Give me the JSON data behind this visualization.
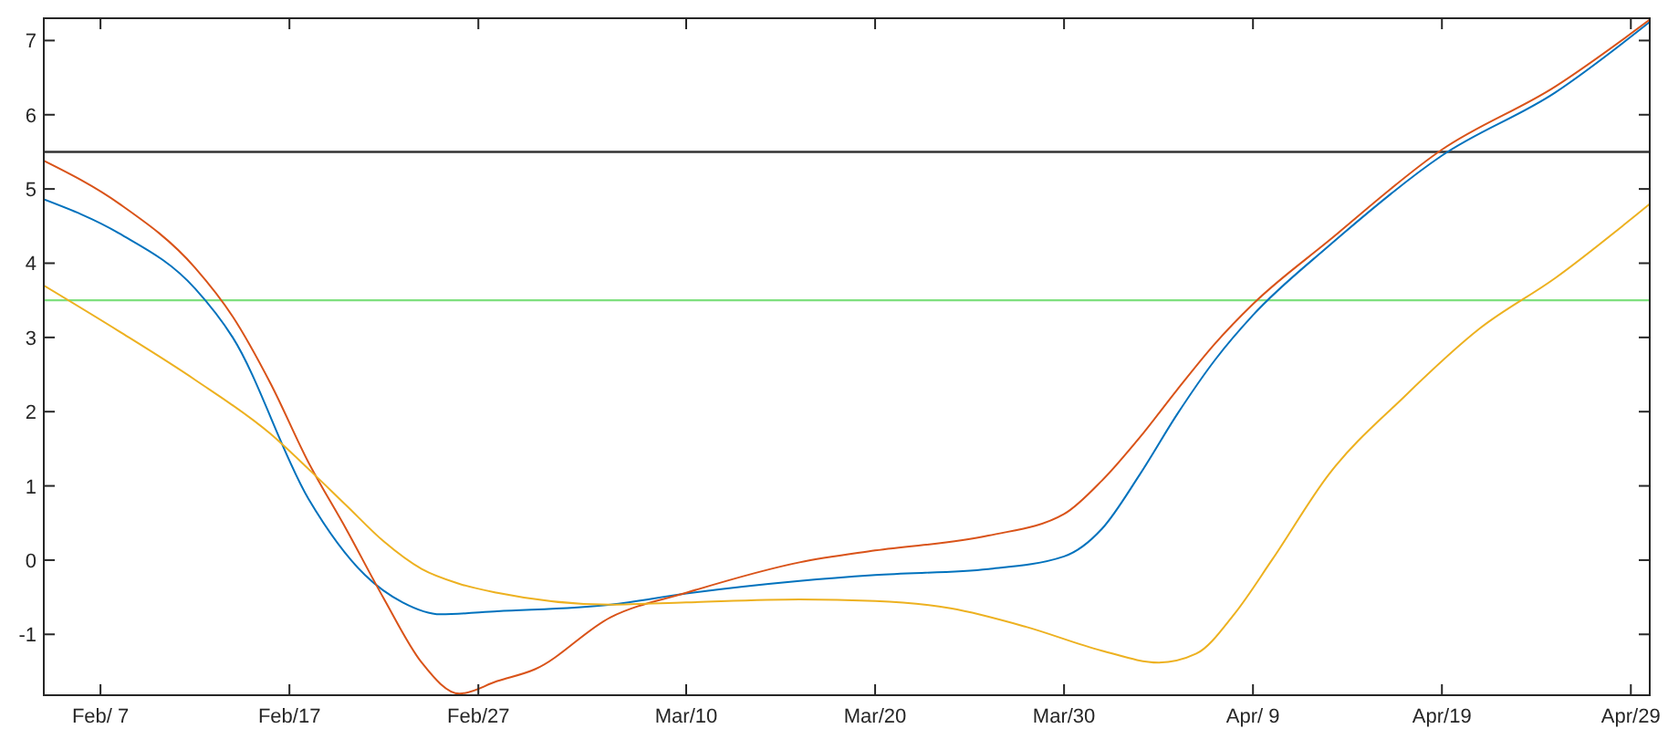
{
  "chart_data": {
    "type": "line",
    "xlim": [
      "--02-04",
      "--04-30"
    ],
    "ylim": [
      -1.82,
      7.3
    ],
    "xticks": [
      {
        "value": "--02-07",
        "label": "Feb/ 7"
      },
      {
        "value": "--02-17",
        "label": "Feb/17"
      },
      {
        "value": "--02-27",
        "label": "Feb/27"
      },
      {
        "value": "--03-10",
        "label": "Mar/10"
      },
      {
        "value": "--03-20",
        "label": "Mar/20"
      },
      {
        "value": "--03-30",
        "label": "Mar/30"
      },
      {
        "value": "--04-09",
        "label": "Apr/ 9"
      },
      {
        "value": "--04-19",
        "label": "Apr/19"
      },
      {
        "value": "--04-29",
        "label": "Apr/29"
      }
    ],
    "yticks": [
      -1,
      0,
      1,
      2,
      3,
      4,
      5,
      6,
      7
    ],
    "grid": false,
    "marker": "none",
    "line_style": "solid",
    "ref_lines": [
      {
        "axis": "y",
        "value": 5.5,
        "color": "#333333"
      },
      {
        "axis": "y",
        "value": 3.5,
        "color": "#7fe07f"
      }
    ],
    "series": [
      {
        "color": "#0072bd",
        "x": [
          "--02-04",
          "--02-08",
          "--02-12",
          "--02-14",
          "--02-18",
          "--02-21",
          "--02-23",
          "--02-25",
          "--02-28",
          "--03-06",
          "--03-10",
          "--03-16",
          "--03-20",
          "--03-26",
          "--03-30",
          "--04-01",
          "--04-03",
          "--04-05",
          "--04-07",
          "--04-09",
          "--04-13",
          "--04-19",
          "--04-25",
          "--04-30"
        ],
        "values": [
          4.86,
          4.4,
          3.66,
          3.0,
          0.83,
          -0.2,
          -0.57,
          -0.73,
          -0.69,
          -0.6,
          -0.45,
          -0.28,
          -0.2,
          -0.12,
          0.05,
          0.42,
          1.15,
          1.97,
          2.7,
          3.3,
          4.23,
          5.45,
          6.3,
          7.25
        ]
      },
      {
        "color": "#d95319",
        "x": [
          "--02-04",
          "--02-08",
          "--02-12",
          "--02-14",
          "--02-16",
          "--02-18",
          "--02-20",
          "--02-22",
          "--02-24",
          "--02-26",
          "--02-28",
          "--03-02",
          "--03-06",
          "--03-10",
          "--03-16",
          "--03-20",
          "--03-26",
          "--03-30",
          "--04-01",
          "--04-03",
          "--04-05",
          "--04-07",
          "--04-09",
          "--04-13",
          "--04-19",
          "--04-25",
          "--04-30"
        ],
        "values": [
          5.38,
          4.8,
          3.94,
          3.28,
          2.38,
          1.32,
          0.42,
          -0.52,
          -1.38,
          -1.8,
          -1.63,
          -1.47,
          -0.77,
          -0.44,
          -0.03,
          0.13,
          0.33,
          0.62,
          1.07,
          1.65,
          2.3,
          2.92,
          3.45,
          4.3,
          5.53,
          6.38,
          7.28
        ]
      },
      {
        "color": "#edb120",
        "x": [
          "--02-04",
          "--02-08",
          "--02-12",
          "--02-16",
          "--02-18",
          "--02-20",
          "--02-22",
          "--02-24",
          "--02-26",
          "--02-28",
          "--03-06",
          "--03-10",
          "--03-16",
          "--03-20",
          "--03-24",
          "--03-28",
          "--04-01",
          "--04-04",
          "--04-06",
          "--04-08",
          "--04-10",
          "--04-13",
          "--04-17",
          "--04-21",
          "--04-25",
          "--04-30"
        ],
        "values": [
          3.7,
          3.08,
          2.43,
          1.7,
          1.23,
          0.74,
          0.25,
          -0.12,
          -0.32,
          -0.44,
          -0.6,
          -0.57,
          -0.53,
          -0.55,
          -0.65,
          -0.9,
          -1.22,
          -1.38,
          -1.26,
          -0.73,
          0,
          1.15,
          2.2,
          3.12,
          3.8,
          4.8
        ]
      }
    ]
  }
}
